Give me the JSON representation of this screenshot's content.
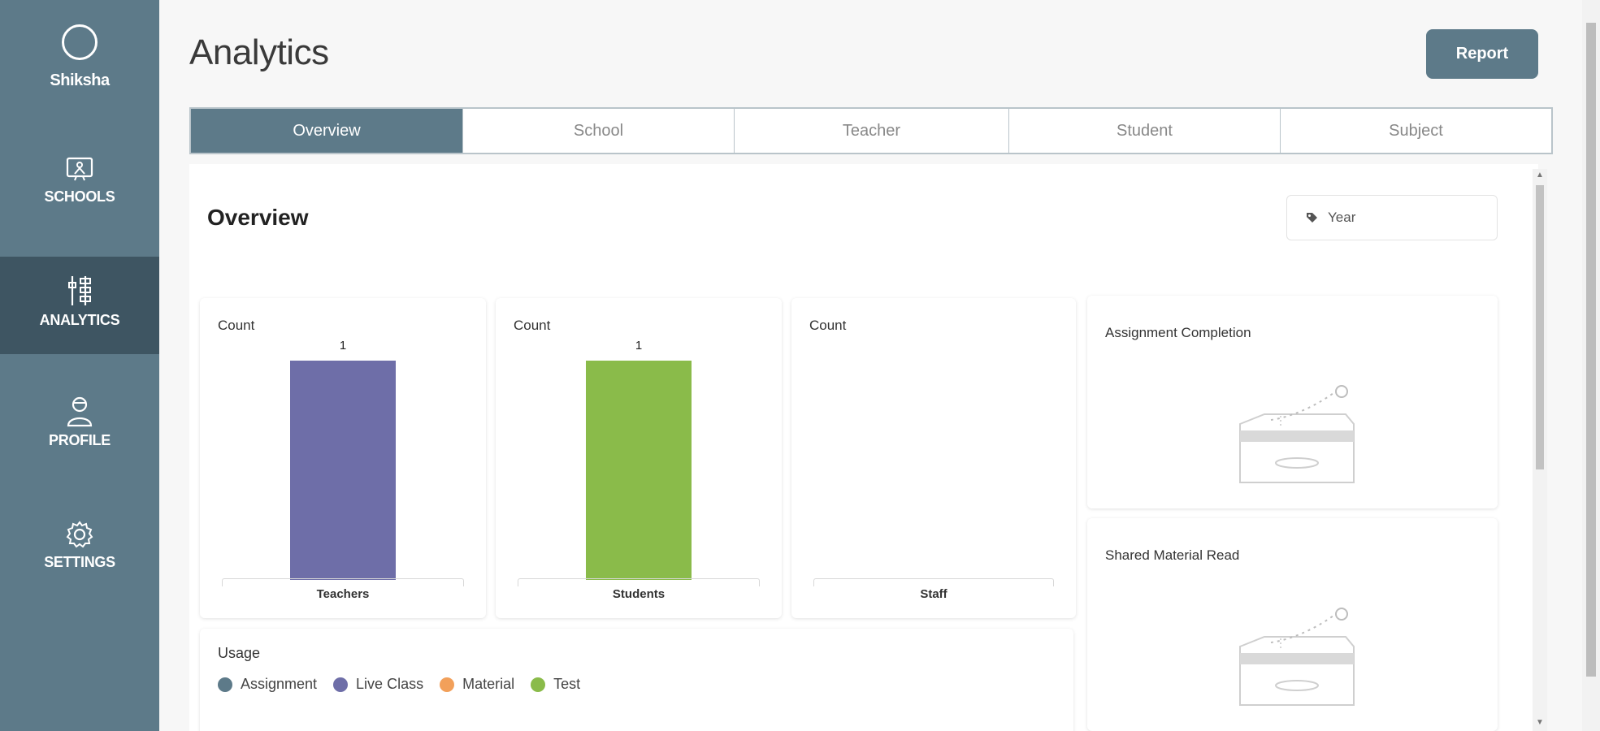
{
  "app": {
    "logo_text": "Shiksha"
  },
  "sidebar": {
    "items": [
      {
        "label": "SCHOOLS",
        "icon": "school-board-icon"
      },
      {
        "label": "ANALYTICS",
        "icon": "analytics-icon",
        "active": true
      },
      {
        "label": "PROFILE",
        "icon": "user-icon"
      },
      {
        "label": "SETTINGS",
        "icon": "gear-icon"
      }
    ]
  },
  "header": {
    "title": "Analytics",
    "report_label": "Report"
  },
  "tabs": [
    {
      "label": "Overview",
      "active": true
    },
    {
      "label": "School"
    },
    {
      "label": "Teacher"
    },
    {
      "label": "Student"
    },
    {
      "label": "Subject"
    }
  ],
  "overview": {
    "title": "Overview",
    "year_placeholder": "Year"
  },
  "cards": [
    {
      "ylabel": "Count",
      "category": "Teachers",
      "value": 1,
      "value_label": "1",
      "color": "#6e6ea8"
    },
    {
      "ylabel": "Count",
      "category": "Students",
      "value": 1,
      "value_label": "1",
      "color": "#8abb4a"
    },
    {
      "ylabel": "Count",
      "category": "Staff",
      "value": 0,
      "value_label": "",
      "color": "#999999"
    }
  ],
  "chart_data": [
    {
      "type": "bar",
      "categories": [
        "Teachers"
      ],
      "values": [
        1
      ],
      "ylabel": "Count"
    },
    {
      "type": "bar",
      "categories": [
        "Students"
      ],
      "values": [
        1
      ],
      "ylabel": "Count"
    },
    {
      "type": "bar",
      "categories": [
        "Staff"
      ],
      "values": [
        0
      ],
      "ylabel": "Count"
    }
  ],
  "side_cards": [
    {
      "title": "Assignment Completion"
    },
    {
      "title": "Shared Material Read"
    }
  ],
  "usage": {
    "title": "Usage",
    "legend": [
      {
        "label": "Assignment",
        "color": "#5d7a89"
      },
      {
        "label": "Live Class",
        "color": "#6e6ea8"
      },
      {
        "label": "Material",
        "color": "#f2a05a"
      },
      {
        "label": "Test",
        "color": "#8abb4a"
      }
    ]
  },
  "colors": {
    "primary": "#5d7a89",
    "primary_dark": "#3e5562"
  }
}
